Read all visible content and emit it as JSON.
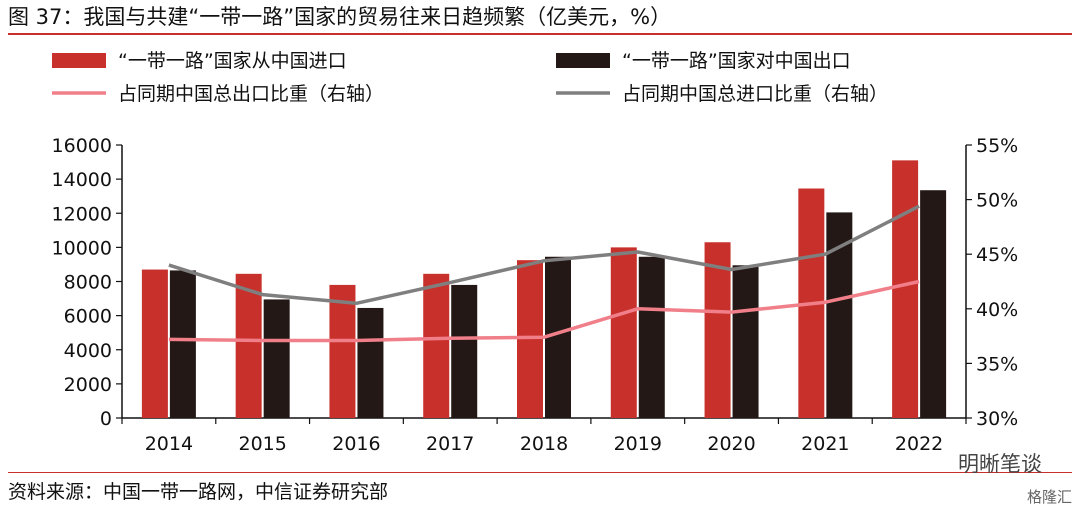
{
  "title": "图 37：我国与共建“一带一路”国家的贸易往来日趋频繁（亿美元，%）",
  "source": "资料来源：中国一带一路网，中信证券研究部",
  "watermark": "明晰笔谈",
  "watermark2": "格隆汇",
  "colors": {
    "accent": "#c8302b",
    "imports": "#c8302b",
    "exports": "#231815",
    "export_share": "#f07f8a",
    "import_share": "#7f7f7f"
  },
  "chart_data": {
    "type": "bar",
    "categories": [
      "2014",
      "2015",
      "2016",
      "2017",
      "2018",
      "2019",
      "2020",
      "2021",
      "2022"
    ],
    "series": [
      {
        "name": "“一带一路”国家从中国进口",
        "kind": "bar",
        "axis": "left",
        "values": [
          8700,
          8450,
          7800,
          8450,
          9250,
          10000,
          10300,
          13450,
          15100
        ]
      },
      {
        "name": "“一带一路”国家对中国出口",
        "kind": "bar",
        "axis": "left",
        "values": [
          8650,
          6950,
          6450,
          7800,
          9450,
          9450,
          8950,
          12050,
          13350
        ]
      },
      {
        "name": "占同期中国总出口比重（右轴）",
        "kind": "line",
        "axis": "right",
        "values": [
          37.2,
          37.1,
          37.1,
          37.3,
          37.4,
          40.0,
          39.7,
          40.6,
          42.5
        ]
      },
      {
        "name": "占同期中国总进口比重（右轴）",
        "kind": "line",
        "axis": "right",
        "values": [
          44.0,
          41.3,
          40.5,
          42.4,
          44.4,
          45.2,
          43.6,
          45.0,
          49.4
        ]
      }
    ],
    "y_left": {
      "min": 0,
      "max": 16000,
      "ticks": [
        "0",
        "2000",
        "4000",
        "6000",
        "8000",
        "10000",
        "12000",
        "14000",
        "16000"
      ]
    },
    "y_right": {
      "min": 30,
      "max": 55,
      "ticks": [
        "30%",
        "35%",
        "40%",
        "45%",
        "50%",
        "55%"
      ]
    },
    "grid": false,
    "legend_position": "top"
  }
}
